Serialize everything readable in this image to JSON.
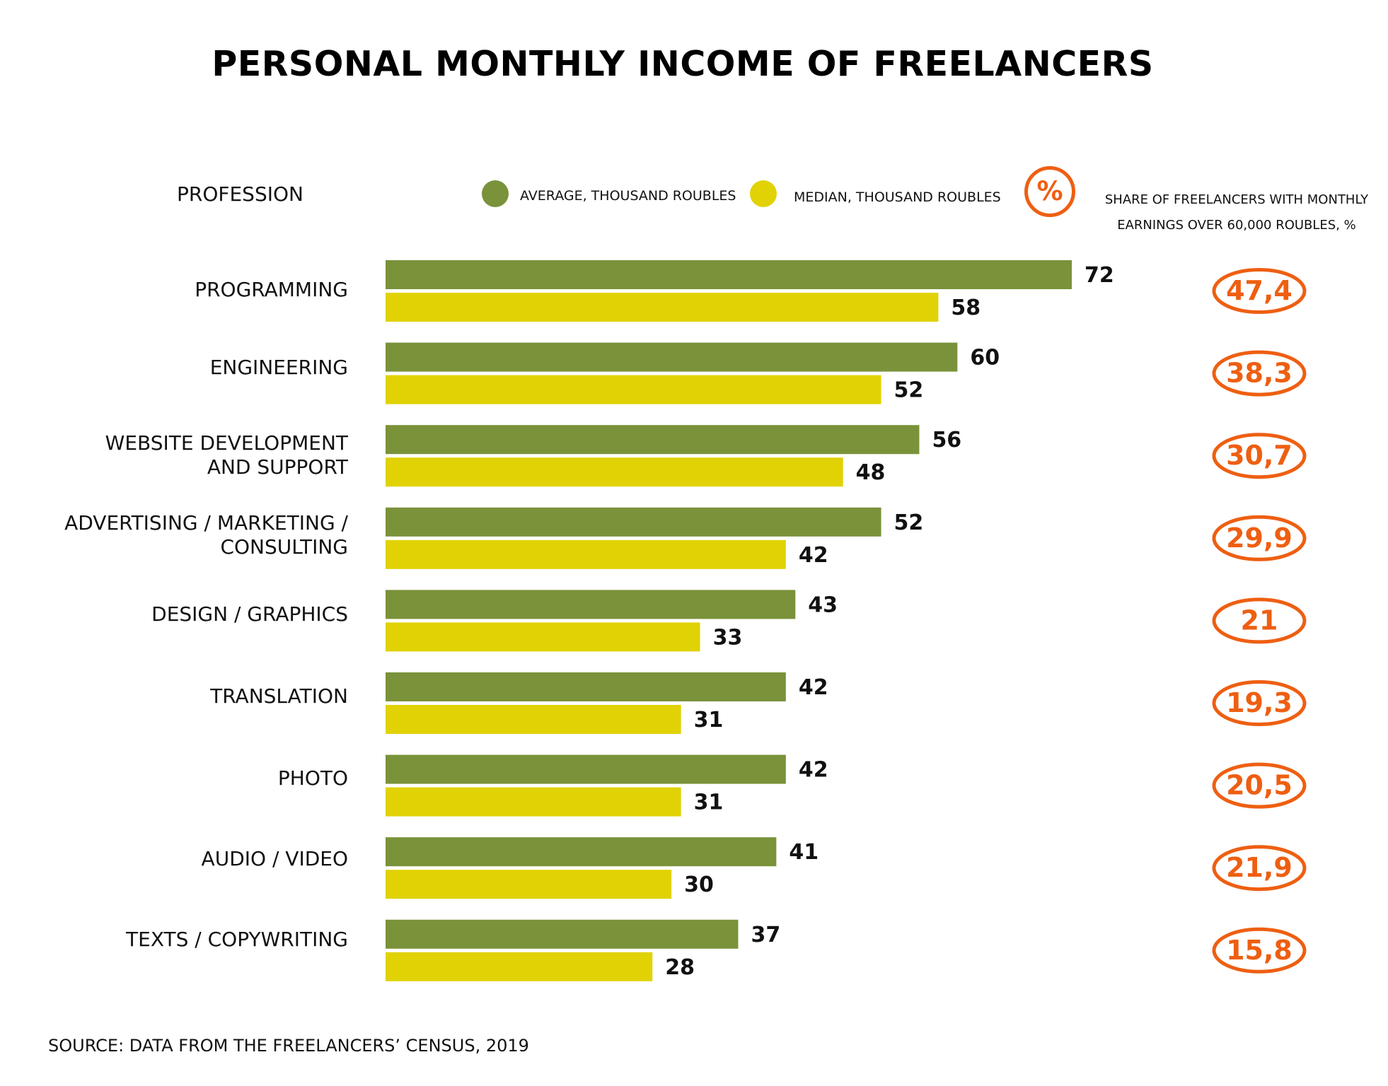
{
  "chart_data": {
    "type": "bar",
    "orientation": "horizontal",
    "title": "PERSONAL MONTHLY INCOME OF FREELANCERS",
    "category_header": "PROFESSION",
    "categories": [
      "PROGRAMMING",
      "ENGINEERING",
      "WEBSITE DEVELOPMENT\nAND SUPPORT",
      "ADVERTISING / MARKETING /\nCONSULTING",
      "DESIGN / GRAPHICS",
      "TRANSLATION",
      "PHOTO",
      "AUDIO / VIDEO",
      "TEXTS / COPYWRITING"
    ],
    "series": [
      {
        "name": "AVERAGE,  THOUSAND ROUBLES",
        "color": "#7a9239",
        "values": [
          72,
          60,
          56,
          52,
          43,
          42,
          42,
          41,
          37
        ]
      },
      {
        "name": "MEDIAN, THOUSAND ROUBLES",
        "color": "#e1d206",
        "values": [
          58,
          52,
          48,
          42,
          33,
          31,
          31,
          30,
          28
        ]
      }
    ],
    "share_over_60k": {
      "symbol": "%",
      "label": "SHARE OF FREELANCERS WITH MONTHLY EARNINGS OVER 60,000 ROUBLES, %",
      "color": "#ee5f12",
      "values": [
        "47,4",
        "38,3",
        "30,7",
        "29,9",
        "21",
        "19,3",
        "20,5",
        "21,9",
        "15,8"
      ]
    },
    "source": "SOURCE: DATA FROM THE FREELANCERS’ CENSUS, 2019",
    "xlim": [
      0,
      72
    ],
    "grid": false,
    "legend_placement": "top"
  }
}
